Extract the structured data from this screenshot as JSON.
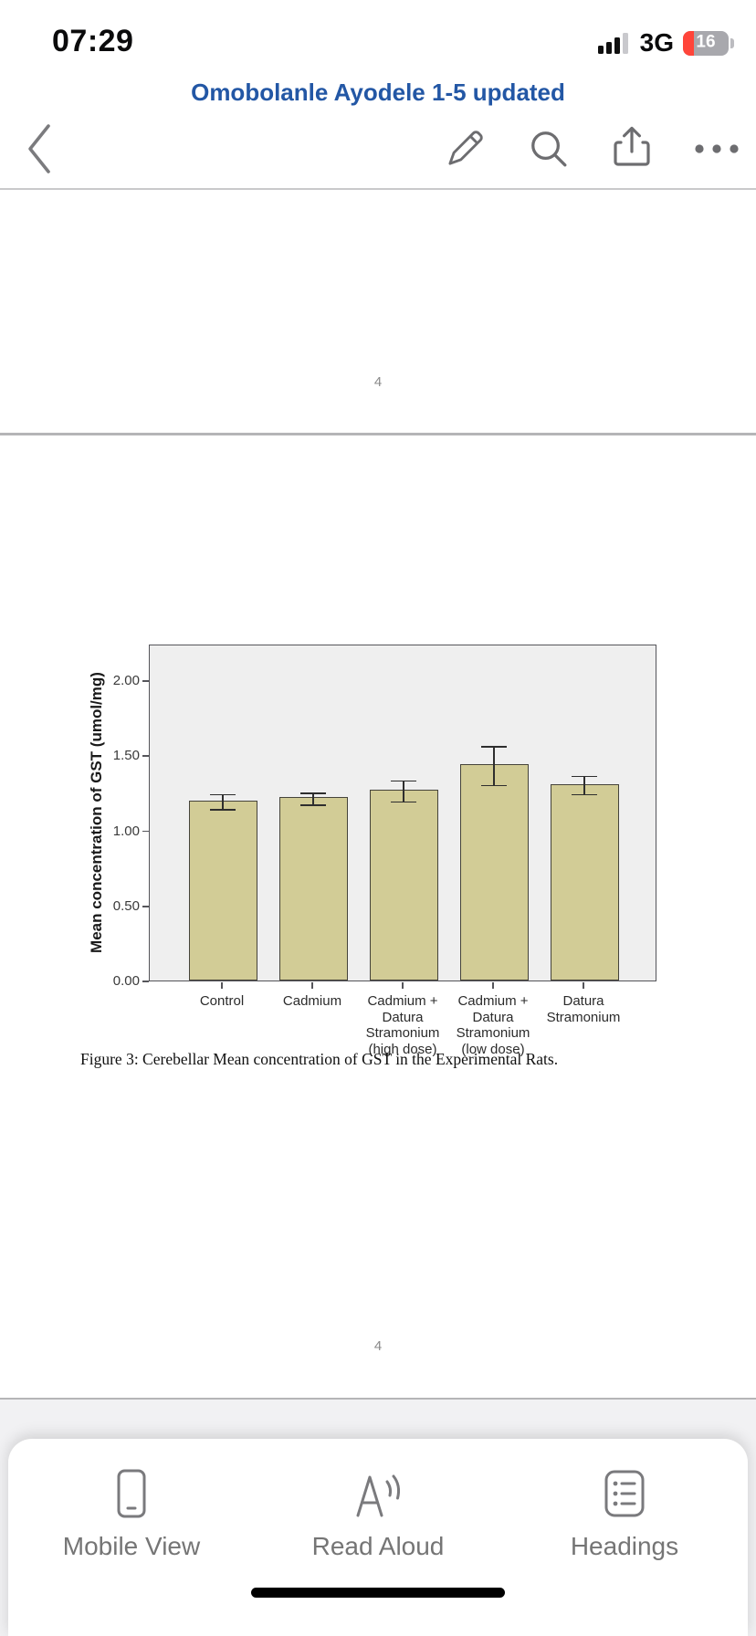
{
  "status_bar": {
    "time": "07:29",
    "network": "3G",
    "battery_level": "16"
  },
  "header": {
    "title": "Omobolanle Ayodele 1-5 updated"
  },
  "nav_icons": [
    "chevron-left",
    "pencil-edit",
    "search-magnifier",
    "share-box-arrow",
    "ellipsis-more"
  ],
  "document": {
    "page_number_top": "4",
    "page_number_bottom": "4",
    "figure_caption": "Figure 3: Cerebellar Mean concentration of GST in the Experimental Rats."
  },
  "chart_data": {
    "type": "bar",
    "title": "",
    "categories": [
      "Control",
      "Cadmium",
      "Cadmium +\nDatura\nStramonium\n(high dose)",
      "Cadmium +\nDatura\nStramonium\n(low dose)",
      "Datura\nStramonium"
    ],
    "values": [
      1.2,
      1.22,
      1.27,
      1.44,
      1.31
    ],
    "errors": [
      0.05,
      0.04,
      0.07,
      0.13,
      0.06
    ],
    "xlabel": "",
    "ylabel": "Mean concentration of GST (umol/mg)",
    "ytick_values": [
      0,
      0.5,
      1,
      1.5,
      2
    ],
    "ytick_labels": [
      "0.00",
      "0.50",
      "1.00",
      "1.50",
      "2.00"
    ],
    "ylim": [
      0,
      2.24
    ],
    "grid": false,
    "legend": "none",
    "bar_color": "#d2cc96",
    "bar_border_color": "#45433a",
    "plot_bg_color": "#efefef",
    "error_bar_color": "#2e2e2e"
  },
  "toolbar": {
    "items": [
      {
        "label": "Mobile View",
        "icon": "phone-outline"
      },
      {
        "label": "Read Aloud",
        "icon": "a-with-sound-waves"
      },
      {
        "label": "Headings",
        "icon": "bullet-list-square"
      }
    ]
  }
}
